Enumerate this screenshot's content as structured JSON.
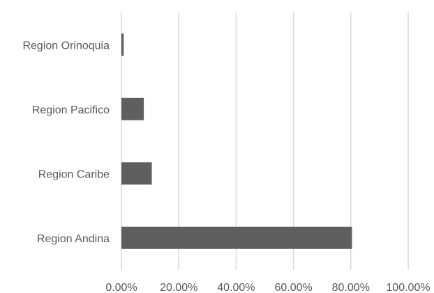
{
  "chart_data": {
    "type": "bar",
    "orientation": "horizontal",
    "categories": [
      "Region Orinoquia",
      "Region Pacifico",
      "Region Caribe",
      "Region Andina"
    ],
    "values": [
      0.8,
      7.8,
      10.6,
      80.4
    ],
    "xlim": [
      0,
      100
    ],
    "x_ticks": [
      "0.00%",
      "20.00%",
      "40.00%",
      "60.00%",
      "80.00%",
      "100.00%"
    ],
    "grid": "vertical",
    "bar_color": "#5f5f5f",
    "grid_color": "#d9d9d9"
  }
}
